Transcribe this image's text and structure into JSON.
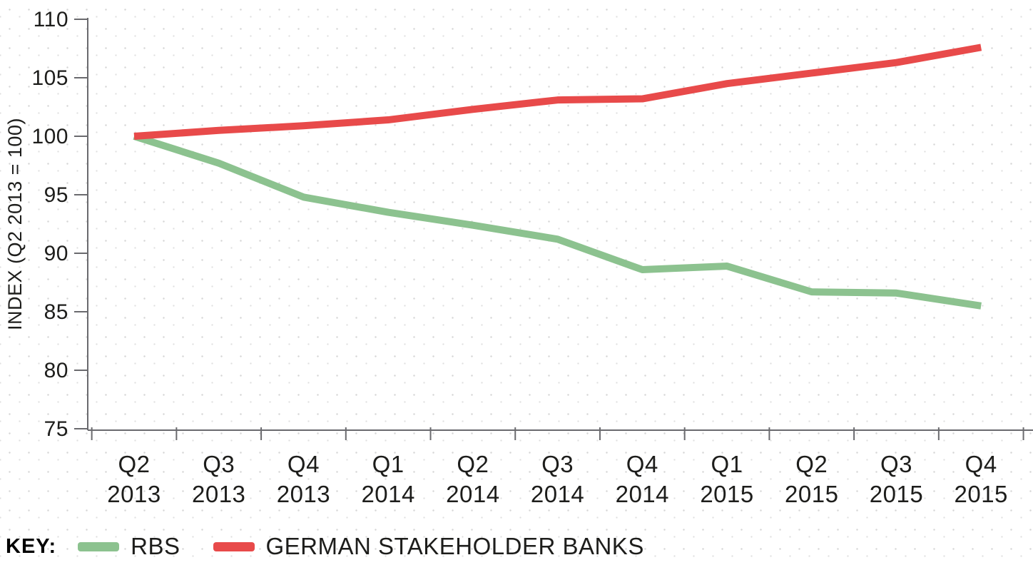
{
  "chart_data": {
    "type": "line",
    "title": "",
    "ylabel": "INDEX (Q2 2013 = 100)",
    "xlabel": "",
    "ylim": [
      75,
      110
    ],
    "yticks": [
      75,
      80,
      85,
      90,
      95,
      100,
      105,
      110
    ],
    "grid": false,
    "background_texture": "light-gray-dot-pattern",
    "axis_color": "#6a6a6e",
    "text_color": "#1d1d1b",
    "categories": [
      {
        "quarter": "Q2",
        "year": "2013"
      },
      {
        "quarter": "Q3",
        "year": "2013"
      },
      {
        "quarter": "Q4",
        "year": "2013"
      },
      {
        "quarter": "Q1",
        "year": "2014"
      },
      {
        "quarter": "Q2",
        "year": "2014"
      },
      {
        "quarter": "Q3",
        "year": "2014"
      },
      {
        "quarter": "Q4",
        "year": "2014"
      },
      {
        "quarter": "Q1",
        "year": "2015"
      },
      {
        "quarter": "Q2",
        "year": "2015"
      },
      {
        "quarter": "Q3",
        "year": "2015"
      },
      {
        "quarter": "Q4",
        "year": "2015"
      }
    ],
    "series": [
      {
        "name": "RBS",
        "color": "#8cc28f",
        "values": [
          100,
          97.7,
          94.8,
          93.5,
          92.4,
          91.2,
          88.6,
          88.9,
          86.7,
          86.6,
          85.5
        ]
      },
      {
        "name": "GERMAN STAKEHOLDER BANKS",
        "color": "#e84a4a",
        "values": [
          100,
          100.5,
          100.9,
          101.4,
          102.3,
          103.1,
          103.2,
          104.5,
          105.4,
          106.3,
          107.6
        ]
      }
    ],
    "legend": {
      "label": "KEY:",
      "position": "bottom-left"
    }
  }
}
